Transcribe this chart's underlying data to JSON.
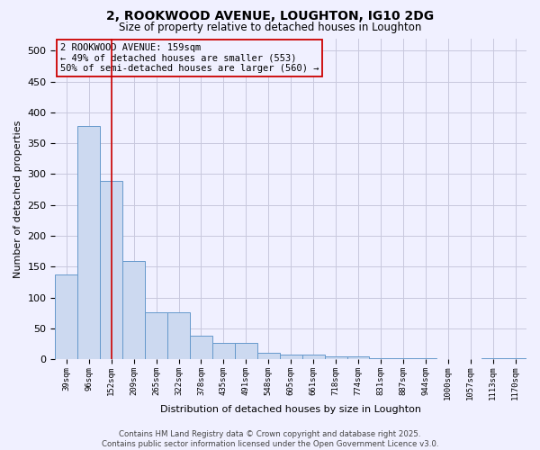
{
  "title": "2, ROOKWOOD AVENUE, LOUGHTON, IG10 2DG",
  "subtitle": "Size of property relative to detached houses in Loughton",
  "xlabel": "Distribution of detached houses by size in Loughton",
  "ylabel": "Number of detached properties",
  "categories": [
    "39sqm",
    "96sqm",
    "152sqm",
    "209sqm",
    "265sqm",
    "322sqm",
    "378sqm",
    "435sqm",
    "491sqm",
    "548sqm",
    "605sqm",
    "661sqm",
    "718sqm",
    "774sqm",
    "831sqm",
    "887sqm",
    "944sqm",
    "1000sqm",
    "1057sqm",
    "1113sqm",
    "1170sqm"
  ],
  "values": [
    138,
    378,
    289,
    159,
    76,
    76,
    38,
    27,
    27,
    10,
    7,
    7,
    4,
    4,
    1,
    1,
    2,
    0,
    0,
    2,
    2
  ],
  "bar_color": "#ccd9f0",
  "bar_edge_color": "#6699cc",
  "ylim": [
    0,
    520
  ],
  "yticks": [
    0,
    50,
    100,
    150,
    200,
    250,
    300,
    350,
    400,
    450,
    500
  ],
  "vline_x": 2.0,
  "vline_color": "#cc0000",
  "annotation_text": "2 ROOKWOOD AVENUE: 159sqm\n← 49% of detached houses are smaller (553)\n50% of semi-detached houses are larger (560) →",
  "footer_line1": "Contains HM Land Registry data © Crown copyright and database right 2025.",
  "footer_line2": "Contains public sector information licensed under the Open Government Licence v3.0.",
  "bg_color": "#f0f0ff",
  "grid_color": "#c8c8dd"
}
